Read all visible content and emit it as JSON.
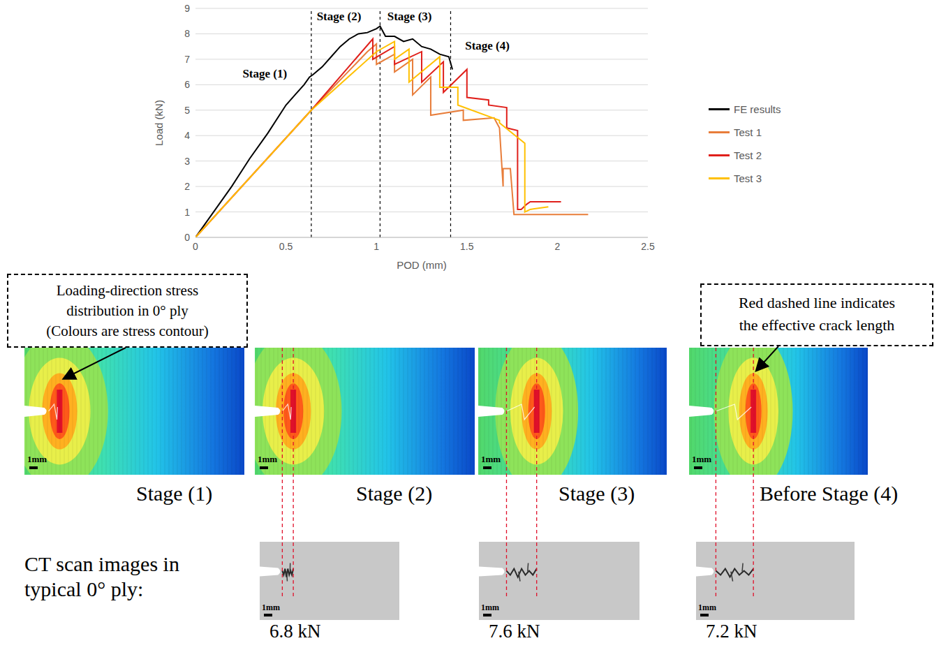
{
  "chart_data": {
    "type": "line",
    "x_label": "POD (mm)",
    "y_label": "Load (kN)",
    "xlim": [
      0,
      2.5
    ],
    "xticks": [
      0,
      0.5,
      1,
      1.5,
      2,
      2.5
    ],
    "ylim": [
      0,
      9
    ],
    "yticks": [
      0,
      1,
      2,
      3,
      4,
      5,
      6,
      7,
      8,
      9
    ],
    "grid": true,
    "legend": "right",
    "series": [
      {
        "name": "FE results",
        "color": "#000000",
        "x": [
          0,
          0.1,
          0.2,
          0.3,
          0.4,
          0.5,
          0.55,
          0.6,
          0.63,
          0.65,
          0.7,
          0.75,
          0.8,
          0.85,
          0.9,
          0.95,
          1.0,
          1.02,
          1.05,
          1.1,
          1.15,
          1.2,
          1.25,
          1.3,
          1.35,
          1.4,
          1.42
        ],
        "values": [
          0,
          1.0,
          2.0,
          3.1,
          4.1,
          5.2,
          5.6,
          6.0,
          6.3,
          6.4,
          6.7,
          7.1,
          7.5,
          7.8,
          8.0,
          8.05,
          8.2,
          8.3,
          7.9,
          7.9,
          7.7,
          7.8,
          7.5,
          7.4,
          7.2,
          7.1,
          6.6
        ]
      },
      {
        "name": "Test 1",
        "color": "#e87d3a",
        "x": [
          0,
          0.64,
          0.95,
          1.0,
          1.0,
          1.1,
          1.1,
          1.2,
          1.2,
          1.3,
          1.3,
          1.48,
          1.48,
          1.65,
          1.68,
          1.7,
          1.7,
          1.74,
          1.76,
          2.17
        ],
        "values": [
          0,
          5.0,
          7.3,
          7.6,
          6.8,
          7.2,
          6.5,
          7.0,
          5.6,
          6.3,
          4.8,
          5.0,
          4.6,
          4.7,
          4.3,
          2.0,
          2.7,
          2.7,
          0.9,
          0.9
        ]
      },
      {
        "name": "Test 2",
        "color": "#e0201b",
        "x": [
          0,
          0.64,
          0.98,
          0.98,
          1.1,
          1.1,
          1.25,
          1.25,
          1.37,
          1.37,
          1.5,
          1.5,
          1.62,
          1.62,
          1.72,
          1.72,
          1.78,
          1.78,
          1.8,
          1.83,
          1.85,
          2.02
        ],
        "values": [
          0,
          5.0,
          7.8,
          7.0,
          7.5,
          6.8,
          7.3,
          6.1,
          6.9,
          5.7,
          6.6,
          5.5,
          5.4,
          5.2,
          5.1,
          4.3,
          4.2,
          1.1,
          1.1,
          1.3,
          1.4,
          1.4
        ]
      },
      {
        "name": "Test 3",
        "color": "#ffc000",
        "x": [
          0,
          0.64,
          1.0,
          1.1,
          1.1,
          1.18,
          1.18,
          1.35,
          1.35,
          1.45,
          1.45,
          1.68,
          1.68,
          1.82,
          1.82,
          1.85,
          1.95
        ],
        "values": [
          0,
          5.0,
          7.3,
          7.7,
          7.0,
          7.4,
          6.1,
          7.1,
          5.9,
          5.9,
          5.2,
          4.6,
          4.5,
          3.7,
          1.0,
          1.1,
          1.2
        ]
      }
    ],
    "stage_lines": [
      0.64,
      1.02,
      1.41
    ],
    "annotations": [
      {
        "text": "Stage (1)",
        "x": 0.26,
        "y": 6.4
      },
      {
        "text": "Stage (2)",
        "x": 0.67,
        "y": 8.65
      },
      {
        "text": "Stage (3)",
        "x": 1.06,
        "y": 8.65
      },
      {
        "text": "Stage (4)",
        "x": 1.49,
        "y": 7.5
      }
    ]
  },
  "figure": {
    "callouts": [
      {
        "lines": [
          "Loading-direction stress",
          "distribution in 0° ply",
          "(Colours are stress contour)"
        ]
      },
      {
        "lines": [
          "Red dashed line indicates",
          "the effective crack length"
        ]
      }
    ],
    "fe_panels": [
      {
        "title": "Stage (1)",
        "scale": "1mm"
      },
      {
        "title": "Stage (2)",
        "scale": "1mm"
      },
      {
        "title": "Stage (3)",
        "scale": "1mm"
      },
      {
        "title": "Before Stage (4)",
        "scale": "1mm"
      }
    ],
    "ct_row_label": [
      "CT scan images in",
      "typical 0° ply:"
    ],
    "ct_images": [
      {
        "load": "6.8 kN",
        "scale": "1mm"
      },
      {
        "load": "7.6 kN",
        "scale": "1mm"
      },
      {
        "load": "7.2 kN",
        "scale": "1mm"
      }
    ]
  }
}
